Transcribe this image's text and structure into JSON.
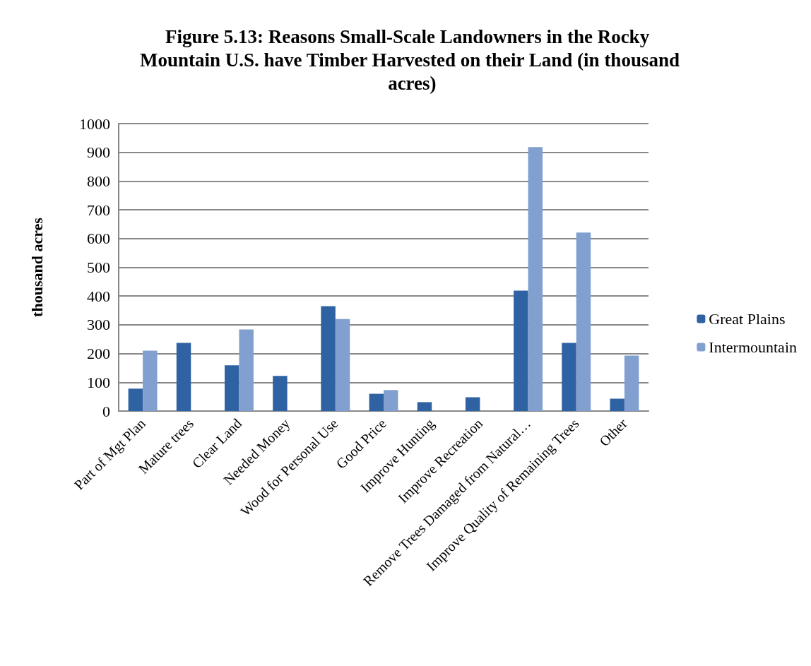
{
  "chart_data": {
    "type": "bar",
    "title": "Figure 5.13: Reasons Small-Scale Landowners in the Rocky Mountain U.S. have Timber Harvested on their Land (in thousand acres)",
    "ylabel": "thousand acres",
    "categories": [
      "Part of Mgt Plan",
      "Mature trees",
      "Clear Land",
      "Needed Money",
      "Wood for Personal Use",
      "Good Price",
      "Improve Hunting",
      "Improve Recreation",
      "Remove Trees Damaged from Natural…",
      "Improve Quality of Remaining Trees",
      "Other"
    ],
    "series": [
      {
        "name": "Great Plains",
        "color": "#2f62a3",
        "values": [
          78,
          237,
          159,
          122,
          365,
          60,
          31,
          48,
          419,
          237,
          43
        ]
      },
      {
        "name": "Intermountain",
        "color": "#819fcf",
        "values": [
          210,
          null,
          284,
          null,
          320,
          73,
          null,
          null,
          918,
          621,
          193
        ]
      }
    ],
    "ylim": [
      0,
      1000
    ],
    "yticks": [
      0,
      100,
      200,
      300,
      400,
      500,
      600,
      700,
      800,
      900,
      1000
    ],
    "grid": "y",
    "legend": "right"
  }
}
